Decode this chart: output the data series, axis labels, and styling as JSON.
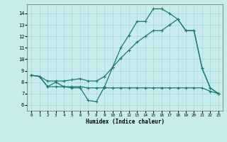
{
  "xlabel": "Humidex (Indice chaleur)",
  "xlim": [
    -0.5,
    23.5
  ],
  "ylim": [
    5.5,
    14.8
  ],
  "yticks": [
    6,
    7,
    8,
    9,
    10,
    11,
    12,
    13,
    14
  ],
  "xticks": [
    0,
    1,
    2,
    3,
    4,
    5,
    6,
    7,
    8,
    9,
    10,
    11,
    12,
    13,
    14,
    15,
    16,
    17,
    18,
    19,
    20,
    21,
    22,
    23
  ],
  "bg_color": "#c6ecec",
  "grid_color": "#a8d8d8",
  "line_color": "#1a7a6e",
  "line1_x": [
    0,
    1,
    2,
    3,
    4,
    5,
    6,
    7,
    8,
    9,
    10,
    11,
    12,
    13,
    14,
    15,
    16,
    17,
    18,
    19,
    20,
    21,
    22,
    23
  ],
  "line1_y": [
    8.6,
    8.5,
    7.6,
    7.6,
    7.6,
    7.5,
    7.5,
    6.4,
    6.3,
    7.6,
    9.3,
    11.0,
    12.1,
    13.3,
    13.3,
    14.4,
    14.4,
    14.0,
    13.5,
    12.5,
    12.5,
    9.2,
    7.5,
    7.0
  ],
  "line2_x": [
    0,
    1,
    2,
    3,
    4,
    5,
    6,
    7,
    8,
    9,
    10,
    11,
    12,
    13,
    14,
    15,
    16,
    17,
    18,
    19,
    20,
    21,
    22,
    23
  ],
  "line2_y": [
    8.6,
    8.5,
    7.6,
    8.0,
    7.6,
    7.6,
    7.6,
    7.5,
    7.5,
    7.5,
    7.5,
    7.5,
    7.5,
    7.5,
    7.5,
    7.5,
    7.5,
    7.5,
    7.5,
    7.5,
    7.5,
    7.5,
    7.2,
    7.0
  ],
  "line3_x": [
    0,
    1,
    2,
    3,
    4,
    5,
    6,
    7,
    8,
    9,
    10,
    11,
    12,
    13,
    14,
    15,
    16,
    17,
    18,
    19,
    20,
    21,
    22,
    23
  ],
  "line3_y": [
    8.6,
    8.5,
    8.1,
    8.1,
    8.1,
    8.2,
    8.3,
    8.1,
    8.1,
    8.5,
    9.3,
    10.1,
    10.8,
    11.5,
    12.0,
    12.5,
    12.5,
    13.0,
    13.5,
    12.5,
    12.5,
    9.2,
    7.5,
    7.0
  ],
  "marker": "+",
  "markersize": 3,
  "linewidth": 0.9
}
